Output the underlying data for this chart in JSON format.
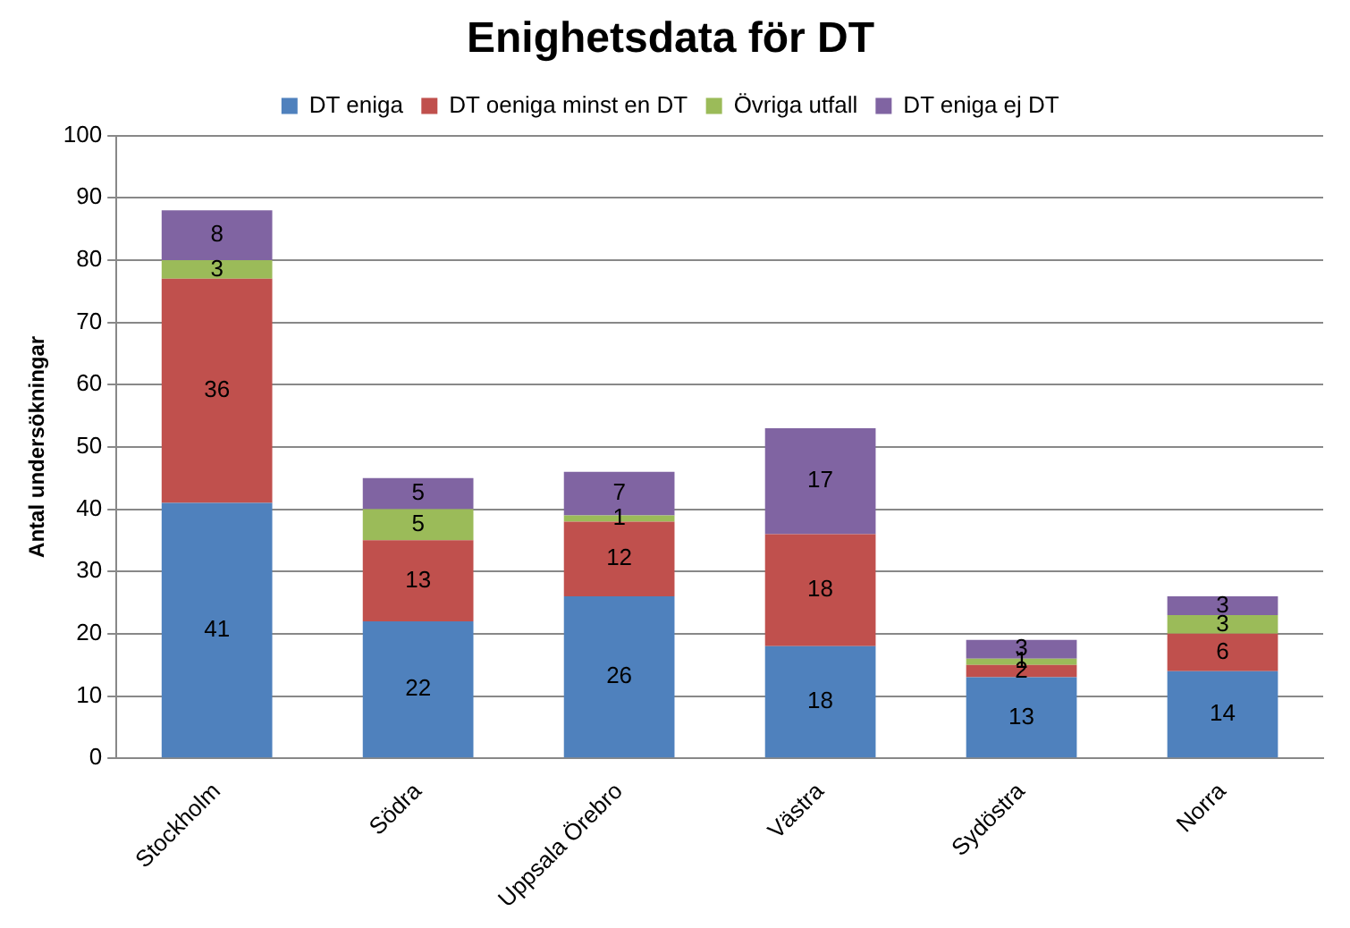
{
  "chart_data": {
    "type": "bar",
    "title": "Enighetsdata för DT",
    "ylabel": "Antal undersökningar",
    "stacked": true,
    "legend": "top",
    "grid": "y",
    "categories": [
      "Stockholm",
      "Södra",
      "Uppsala Örebro",
      "Västra",
      "Sydöstra",
      "Norra"
    ],
    "ylim": [
      0,
      100
    ],
    "yticks": [
      0,
      10,
      20,
      30,
      40,
      50,
      60,
      70,
      80,
      90,
      100
    ],
    "series": [
      {
        "name": "DT eniga",
        "color": "#4f81bd",
        "values": [
          41,
          22,
          26,
          18,
          13,
          14
        ],
        "value_labels": [
          "41",
          "22",
          "26",
          "18",
          "13",
          "14"
        ]
      },
      {
        "name": "DT oeniga minst en DT",
        "color": "#c0504d",
        "values": [
          36,
          13,
          12,
          18,
          2,
          6
        ],
        "value_labels": [
          "36",
          "13",
          "12",
          "18",
          "2",
          "6"
        ]
      },
      {
        "name": "Övriga utfall",
        "color": "#9bbb59",
        "values": [
          3,
          5,
          1,
          0,
          1,
          3
        ],
        "value_labels": [
          "3",
          "5",
          "1",
          null,
          "1",
          "3"
        ]
      },
      {
        "name": "DT eniga ej DT",
        "color": "#8064a2",
        "values": [
          8,
          5,
          7,
          17,
          3,
          3
        ],
        "value_labels": [
          "8",
          "5",
          "7",
          "17",
          "3",
          "3"
        ]
      }
    ]
  }
}
